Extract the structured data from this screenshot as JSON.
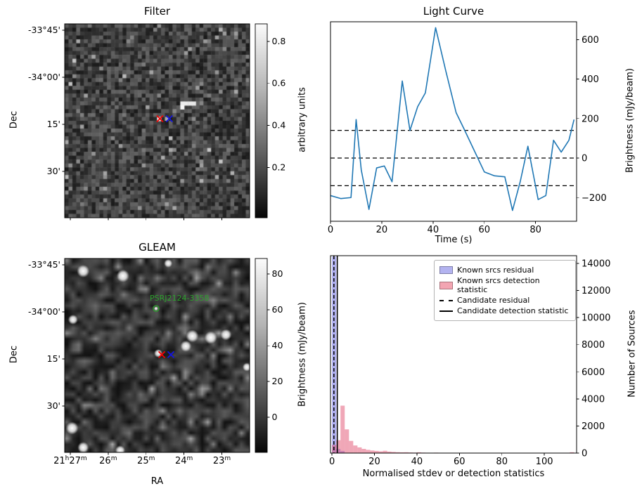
{
  "figure": {
    "background": "#ffffff",
    "text_color": "#000000"
  },
  "chart_data": [
    {
      "id": "filter",
      "type": "heatmap",
      "title": "Filter",
      "xlabel": "",
      "ylabel": "Dec",
      "description": "Pixelated grayscale noise map (filter output) with a bright source cluster right of centre",
      "dec_tick_labels": [
        "-33°45'",
        "-34°00'",
        "15'",
        "30'"
      ],
      "colorbar": {
        "label": "arbitrary units",
        "tick_labels": [
          "0.8",
          "0.6",
          "0.4",
          "0.2"
        ]
      },
      "markers": [
        {
          "name": "candidate-marker",
          "shape": "x",
          "color": "#f40000",
          "rx": 0.515,
          "ry": 0.489
        },
        {
          "name": "catalog-marker",
          "shape": "x",
          "color": "#1414e0",
          "rx": 0.566,
          "ry": 0.489
        }
      ],
      "bright_pixels": [
        [
          0.628,
          0.407
        ],
        [
          0.652,
          0.404
        ],
        [
          0.675,
          0.41
        ],
        [
          0.699,
          0.418
        ],
        [
          0.641,
          0.436
        ],
        [
          0.51,
          0.487
        ]
      ]
    },
    {
      "id": "light_curve",
      "type": "line",
      "title": "Light Curve",
      "xlabel": "Time (s)",
      "ylabel": "Brightness (mJy/beam)",
      "xlim": [
        0,
        96
      ],
      "ylim": [
        -320,
        690
      ],
      "x_tick_values": [
        0,
        20,
        40,
        60,
        80
      ],
      "x_tick_labels": [
        "0",
        "20",
        "40",
        "60",
        "80"
      ],
      "y_tick_values": [
        -200,
        0,
        200,
        400,
        600
      ],
      "y_tick_labels": [
        "−200",
        "0",
        "200",
        "400",
        "600"
      ],
      "line_color": "#1f77b4",
      "threshold_lines": [
        140,
        0,
        -140
      ],
      "x": [
        0,
        4,
        8,
        10,
        12,
        15,
        18,
        21,
        24,
        28,
        31,
        34,
        37,
        41,
        45,
        49,
        52,
        56,
        60,
        64,
        68,
        71,
        74,
        77,
        81,
        84,
        87,
        90,
        93,
        95
      ],
      "y": [
        -190,
        -205,
        -200,
        195,
        -60,
        -260,
        -50,
        -40,
        -120,
        390,
        140,
        260,
        330,
        660,
        440,
        230,
        150,
        40,
        -70,
        -90,
        -95,
        -265,
        -120,
        60,
        -210,
        -190,
        90,
        30,
        90,
        195
      ]
    },
    {
      "id": "gleam",
      "type": "heatmap",
      "title": "GLEAM",
      "xlabel": "RA",
      "ylabel": "Dec",
      "description": "Smoothed GLEAM survey cutout with bright point sources and annotated pulsar",
      "ra_tick_labels": [
        "21h27m",
        "26m",
        "25m",
        "24m",
        "23m"
      ],
      "dec_tick_labels": [
        "-33°45'",
        "-34°00'",
        "15'",
        "30'"
      ],
      "colorbar": {
        "label": "Brightness (mJy/beam)",
        "tick_labels": [
          "80",
          "60",
          "40",
          "20",
          "0"
        ]
      },
      "annotation": {
        "text": "PSRJ2124-3358",
        "color": "#2ca02c",
        "circle_rx": 0.494,
        "circle_ry": 0.258
      },
      "markers": [
        {
          "name": "candidate-marker",
          "shape": "x",
          "color": "#f40000",
          "rx": 0.525,
          "ry": 0.496
        },
        {
          "name": "catalog-marker",
          "shape": "x",
          "color": "#1414e0",
          "rx": 0.574,
          "ry": 0.496
        }
      ],
      "sources": [
        [
          0.1,
          0.065,
          9
        ],
        [
          0.315,
          0.09,
          9
        ],
        [
          0.56,
          0.025,
          6
        ],
        [
          0.045,
          0.315,
          7
        ],
        [
          0.69,
          0.4,
          9
        ],
        [
          0.655,
          0.452,
          8
        ],
        [
          0.79,
          0.408,
          9
        ],
        [
          0.872,
          0.393,
          8
        ],
        [
          0.506,
          0.489,
          6
        ],
        [
          0.04,
          0.875,
          9
        ],
        [
          0.1,
          0.975,
          8
        ],
        [
          0.3,
          0.99,
          7
        ],
        [
          0.985,
          0.56,
          6
        ],
        [
          0.494,
          0.258,
          3
        ]
      ]
    },
    {
      "id": "histogram",
      "type": "bar",
      "title": "",
      "xlabel": "Normalised stdev or detection statistics",
      "ylabel": "Number of Sources",
      "xlim": [
        -0.7,
        115.2
      ],
      "ylim": [
        0,
        14570
      ],
      "x_tick_values": [
        0,
        20,
        40,
        60,
        80,
        100
      ],
      "x_tick_labels": [
        "0",
        "20",
        "40",
        "60",
        "80",
        "100"
      ],
      "y_tick_values": [
        0,
        2000,
        4000,
        6000,
        8000,
        10000,
        12000,
        14000
      ],
      "y_tick_labels": [
        "0",
        "2000",
        "4000",
        "6000",
        "8000",
        "10000",
        "12000",
        "14000"
      ],
      "bin_width": 2,
      "series": [
        {
          "name": "Known srcs residual",
          "fill": "#4646e0",
          "fill_alpha": 0.42,
          "swatch": "#b3b3f0",
          "bins": [
            [
              0,
              14500
            ],
            [
              2,
              300
            ],
            [
              4,
              150
            ]
          ]
        },
        {
          "name": "Known srcs detection statistic",
          "fill": "#e04868",
          "fill_alpha": 0.48,
          "swatch": "#f3a5b2",
          "bins": [
            [
              0,
              600
            ],
            [
              2,
              950
            ],
            [
              4,
              3500
            ],
            [
              6,
              1750
            ],
            [
              8,
              900
            ],
            [
              10,
              560
            ],
            [
              12,
              420
            ],
            [
              14,
              310
            ],
            [
              16,
              240
            ],
            [
              18,
              190
            ],
            [
              20,
              160
            ],
            [
              22,
              130
            ],
            [
              24,
              170
            ],
            [
              26,
              110
            ],
            [
              28,
              85
            ],
            [
              30,
              65
            ],
            [
              32,
              55
            ],
            [
              34,
              60
            ],
            [
              36,
              45
            ],
            [
              38,
              35
            ],
            [
              40,
              55
            ],
            [
              42,
              35
            ],
            [
              44,
              28
            ],
            [
              46,
              22
            ],
            [
              48,
              32
            ],
            [
              50,
              26
            ],
            [
              54,
              20
            ],
            [
              58,
              18
            ],
            [
              60,
              26
            ],
            [
              64,
              14
            ],
            [
              68,
              16
            ],
            [
              72,
              12
            ],
            [
              76,
              12
            ],
            [
              80,
              14
            ],
            [
              84,
              10
            ],
            [
              88,
              12
            ],
            [
              92,
              8
            ],
            [
              96,
              8
            ],
            [
              100,
              8
            ],
            [
              104,
              8
            ],
            [
              108,
              8
            ],
            [
              112,
              60
            ],
            [
              114,
              12
            ]
          ]
        }
      ],
      "vlines": [
        {
          "name": "Candidate residual",
          "x": 0.9,
          "style": "dashed"
        },
        {
          "name": "Candidate detection statistic",
          "x": 2.5,
          "style": "solid"
        }
      ],
      "legend": {
        "items": [
          {
            "label": "Known srcs residual",
            "type": "patch",
            "color": "#b3b3f0"
          },
          {
            "label": "Known srcs detection statistic",
            "type": "patch",
            "color": "#f3a5b2"
          },
          {
            "label": "Candidate residual",
            "type": "dashed-line",
            "color": "#000000"
          },
          {
            "label": "Candidate detection statistic",
            "type": "solid-line",
            "color": "#000000"
          }
        ]
      }
    }
  ]
}
